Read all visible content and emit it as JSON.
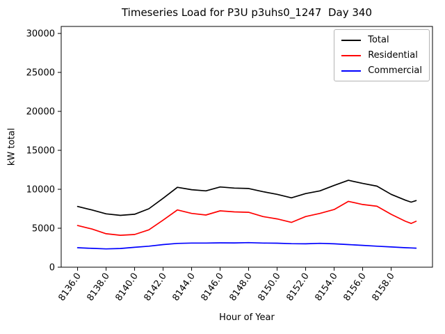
{
  "chart_data": {
    "type": "line",
    "title": "Timeseries Load for P3U p3uhs0_1247  Day 340",
    "xlabel": "Hour of Year",
    "ylabel": "kW total",
    "xlim": [
      8134.85,
      8160.9
    ],
    "ylim": [
      0,
      30900
    ],
    "grid": false,
    "legend_position": "upper right",
    "x_ticks": [
      {
        "value": 8136,
        "label": "8136.0"
      },
      {
        "value": 8138,
        "label": "8138.0"
      },
      {
        "value": 8140,
        "label": "8140.0"
      },
      {
        "value": 8142,
        "label": "8142.0"
      },
      {
        "value": 8144,
        "label": "8144.0"
      },
      {
        "value": 8146,
        "label": "8146.0"
      },
      {
        "value": 8148,
        "label": "8148.0"
      },
      {
        "value": 8150,
        "label": "8150.0"
      },
      {
        "value": 8152,
        "label": "8152.0"
      },
      {
        "value": 8154,
        "label": "8154.0"
      },
      {
        "value": 8156,
        "label": "8156.0"
      },
      {
        "value": 8158,
        "label": "8158.0"
      }
    ],
    "y_ticks": [
      {
        "value": 0,
        "label": "0"
      },
      {
        "value": 5000,
        "label": "5000"
      },
      {
        "value": 10000,
        "label": "10000"
      },
      {
        "value": 15000,
        "label": "15000"
      },
      {
        "value": 20000,
        "label": "20000"
      },
      {
        "value": 25000,
        "label": "25000"
      },
      {
        "value": 30000,
        "label": "30000"
      }
    ],
    "x": [
      8136,
      8137,
      8138,
      8139,
      8140,
      8141,
      8142,
      8143,
      8144,
      8145,
      8146,
      8147,
      8148,
      8149,
      8150,
      8151,
      8152,
      8153,
      8154,
      8155,
      8156,
      8157,
      8158,
      8159,
      8159.4,
      8159.75
    ],
    "series": [
      {
        "name": "Total",
        "color": "#000000",
        "values": [
          7800,
          7350,
          6850,
          6650,
          6800,
          7500,
          8850,
          10250,
          9950,
          9800,
          10300,
          10150,
          10100,
          9700,
          9350,
          8900,
          9450,
          9800,
          10500,
          11150,
          10750,
          10400,
          9350,
          8600,
          8350,
          8550
        ]
      },
      {
        "name": "Residential",
        "color": "#ff0000",
        "values": [
          5350,
          4900,
          4300,
          4100,
          4200,
          4800,
          6050,
          7350,
          6900,
          6700,
          7230,
          7100,
          7050,
          6500,
          6200,
          5750,
          6500,
          6900,
          7400,
          8450,
          8050,
          7820,
          6790,
          5890,
          5620,
          5890
        ]
      },
      {
        "name": "Commercial",
        "color": "#0000ff",
        "values": [
          2500,
          2420,
          2350,
          2400,
          2550,
          2700,
          2900,
          3050,
          3100,
          3100,
          3130,
          3120,
          3150,
          3100,
          3080,
          3020,
          3000,
          3060,
          3000,
          2900,
          2800,
          2700,
          2600,
          2500,
          2470,
          2450
        ]
      }
    ]
  }
}
